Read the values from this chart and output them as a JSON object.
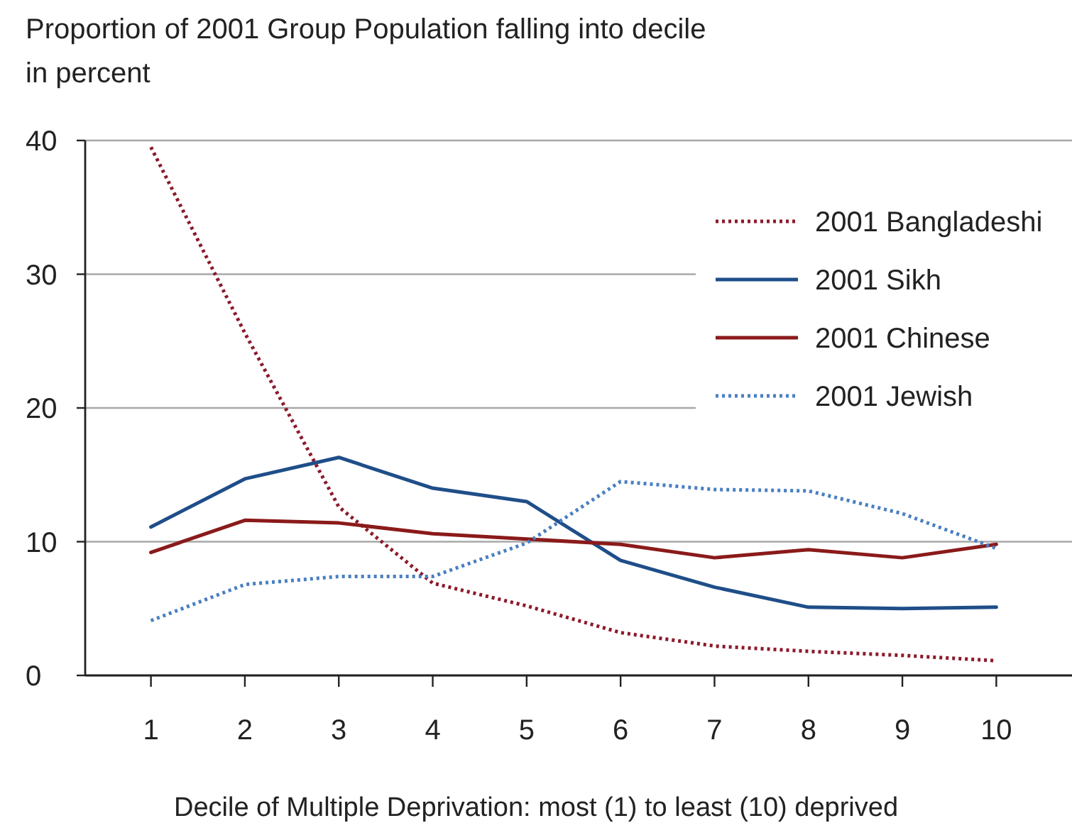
{
  "chart_data": {
    "type": "line",
    "ylabel": "Proportion of 2001 Group Population falling into decile in percent",
    "xlabel": "Decile of Multiple Deprivation:  most (1) to least (10) deprived",
    "categories": [
      "1",
      "2",
      "3",
      "4",
      "5",
      "6",
      "7",
      "8",
      "9",
      "10"
    ],
    "ylim": [
      0,
      40
    ],
    "yticks": [
      0,
      10,
      20,
      30,
      40
    ],
    "grid": "y",
    "legend": "top right",
    "marker": "none",
    "series": [
      {
        "name": "2001 Bangladeshi",
        "color": "#8b1a2b",
        "line_style": "dotted",
        "values": [
          39.5,
          25.6,
          12.6,
          6.9,
          5.2,
          3.2,
          2.2,
          1.8,
          1.5,
          1.1
        ]
      },
      {
        "name": "2001 Sikh",
        "color": "#1f4e89",
        "line_style": "solid",
        "values": [
          11.1,
          14.7,
          16.3,
          14.0,
          13.0,
          8.6,
          6.6,
          5.1,
          5.0,
          5.1
        ]
      },
      {
        "name": "2001 Chinese",
        "color": "#8b1a1a",
        "line_style": "solid",
        "values": [
          9.2,
          11.6,
          11.4,
          10.6,
          10.2,
          9.8,
          8.8,
          9.4,
          8.8,
          9.8
        ]
      },
      {
        "name": "2001 Jewish",
        "color": "#4a7fc1",
        "line_style": "dotted",
        "values": [
          4.1,
          6.8,
          7.4,
          7.4,
          9.9,
          14.5,
          13.9,
          13.8,
          12.1,
          9.5
        ]
      }
    ]
  }
}
